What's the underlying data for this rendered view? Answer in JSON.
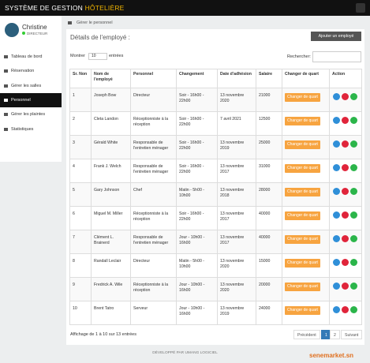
{
  "topbar": {
    "title": "SYSTÈME DE GESTION ",
    "title_highlight": "HÔTELIÈRE"
  },
  "profile": {
    "name": "Christine",
    "role": "DIRECTEUR"
  },
  "menu": [
    "Tableau de bord",
    "Réservation",
    "Gérer les salles",
    "Personnel",
    "Gérer les plaintes",
    "Statistiques"
  ],
  "active_menu": 3,
  "breadcrumb": "Gérer le personnel",
  "page": {
    "title": "Détails de l'employé :",
    "add_button": "Ajouter un employé",
    "show_label": "Montrer",
    "show_value": "10",
    "entries_label": "entrées",
    "search_label": "Rechercher:"
  },
  "table": {
    "headers": [
      "Sr. Non",
      "Nom de l'employé",
      "Personnel",
      "Changement",
      "Date d'adhésion",
      "Salaire",
      "Changer de quart",
      "Action"
    ],
    "rows": [
      [
        1,
        "Joseph Bow",
        "Directeur",
        "Soir - 16h00 - 22h00",
        "13 novembre 2020",
        21000
      ],
      [
        2,
        "Cleta Landon",
        "Réceptionniste à la réception",
        "Soir - 16h00 - 22h00",
        "7 avril 2021",
        12500
      ],
      [
        3,
        "Gérald White",
        "Responsable de l'entretien ménager",
        "Soir - 16h00 - 22h00",
        "13 novembre 2019",
        25000
      ],
      [
        4,
        "Frank J. Welch",
        "Responsable de l'entretien ménager",
        "Soir - 16h00 - 22h00",
        "13 novembre 2017",
        31000
      ],
      [
        5,
        "Gary Johnson",
        "Chef",
        "Matin - 5h00 - 10h00",
        "13 novembre 2018",
        28000
      ],
      [
        6,
        "Miguel M. Miller",
        "Réceptionniste à la réception",
        "Soir - 16h00 - 22h00",
        "13 novembre 2017",
        40000
      ],
      [
        7,
        "Clément L. Brainerd",
        "Responsable de l'entretien ménager",
        "Jour - 10h00 - 16h00",
        "13 novembre 2017",
        40000
      ],
      [
        8,
        "Randall Leclair",
        "Directeur",
        "Matin - 5h00 - 10h00",
        "13 novembre 2020",
        15000
      ],
      [
        9,
        "Fredrick A. Wile",
        "Réceptionniste à la réception",
        "Jour - 10h00 - 16h00",
        "13 novembre 2020",
        20000
      ],
      [
        10,
        "Brent Tatro",
        "Serveur",
        "Jour - 10h00 - 16h00",
        "13 novembre 2019",
        24000
      ]
    ],
    "shift_button": "Changer de quart"
  },
  "info": "Affichage de 1 à 10 sur 13 entrées",
  "pagination": {
    "prev": "Précédent",
    "pages": [
      "1",
      "2"
    ],
    "current": 0,
    "next": "Suivant"
  },
  "credit": "DÉVELOPPÉ PAR UMANG LOGICIEL",
  "watermark": "senemarket.sn"
}
